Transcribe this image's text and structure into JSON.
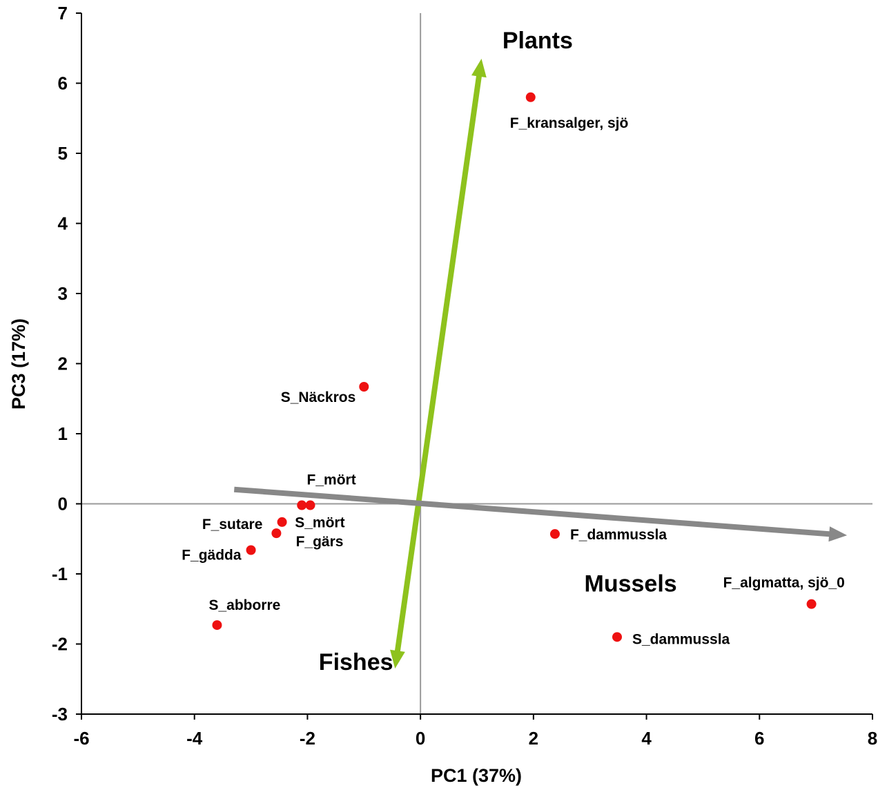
{
  "chart_data": {
    "type": "scatter",
    "xlabel": "PC1 (37%)",
    "ylabel": "PC3 (17%)",
    "xlim": [
      -6,
      8
    ],
    "ylim": [
      -3,
      7
    ],
    "x_ticks": [
      -6,
      -4,
      -2,
      0,
      2,
      4,
      6,
      8
    ],
    "y_ticks": [
      -3,
      -2,
      -1,
      0,
      1,
      2,
      3,
      4,
      5,
      6,
      7
    ],
    "grid": false,
    "zero_lines": true,
    "point_color": "#ee1111",
    "points": [
      {
        "label": "F_kransalger, sjö",
        "x": 1.95,
        "y": 5.8
      },
      {
        "label": "S_Näckros",
        "x": -1.0,
        "y": 1.67
      },
      {
        "label": "F_mört",
        "x": -1.95,
        "y": -0.02
      },
      {
        "label": "S_mört",
        "x": -2.1,
        "y": -0.02
      },
      {
        "label": "F_gärs",
        "x": -2.45,
        "y": -0.26
      },
      {
        "label": "F_sutare",
        "x": -2.55,
        "y": -0.42
      },
      {
        "label": "F_gädda",
        "x": -3.0,
        "y": -0.66
      },
      {
        "label": "S_abborre",
        "x": -3.6,
        "y": -1.73
      },
      {
        "label": "F_dammussla",
        "x": 2.38,
        "y": -0.43
      },
      {
        "label": "S_dammussla",
        "x": 3.48,
        "y": -1.9
      },
      {
        "label": "F_algmatta, sjö_0",
        "x": 6.92,
        "y": -1.43
      }
    ],
    "annotations": [
      {
        "text": "Plants",
        "x": 1.45,
        "y": 6.5
      },
      {
        "text": "Mussels",
        "x": 2.9,
        "y": -1.25
      },
      {
        "text": "Fishes",
        "x": -1.8,
        "y": -2.37
      }
    ],
    "arrows": [
      {
        "name": "green-arrow",
        "color": "#8ec21d",
        "from": [
          -0.45,
          -2.35
        ],
        "to": [
          1.08,
          6.35
        ]
      },
      {
        "name": "gray-arrow",
        "color": "#888888",
        "from": [
          -3.55,
          0.22
        ],
        "to": [
          7.55,
          -0.45
        ]
      }
    ]
  }
}
